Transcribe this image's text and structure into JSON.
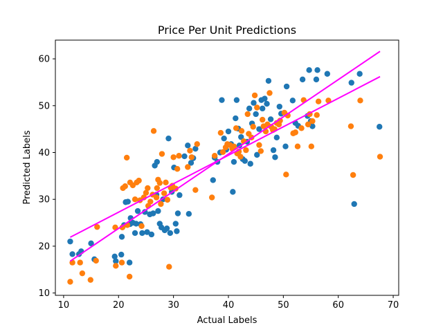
{
  "chart_data": {
    "type": "scatter",
    "title": "Price Per Unit Predictions",
    "xlabel": "Actual Labels",
    "ylabel": "Predicted Labels",
    "xlim": [
      8.5,
      71
    ],
    "ylim": [
      9.5,
      64
    ],
    "xticks": [
      10,
      20,
      30,
      40,
      50,
      60,
      70
    ],
    "yticks": [
      10,
      20,
      30,
      40,
      50,
      60
    ],
    "colors": {
      "series1": "#1f77b4",
      "series2": "#ff7f0e",
      "trend": "#ff00ff"
    },
    "series": [
      {
        "points": [
          [
            11.2,
            21.0
          ],
          [
            11.6,
            18.3
          ],
          [
            12.8,
            18.3
          ],
          [
            13.2,
            18.9
          ],
          [
            15.0,
            20.6
          ],
          [
            15.6,
            17.2
          ],
          [
            19.3,
            17.8
          ],
          [
            19.5,
            16.8
          ],
          [
            20.5,
            18.2
          ],
          [
            20.6,
            22.0
          ],
          [
            21.0,
            24.5
          ],
          [
            21.3,
            29.4
          ],
          [
            21.7,
            29.5
          ],
          [
            22.0,
            16.5
          ],
          [
            22.1,
            24.7
          ],
          [
            22.2,
            26.0
          ],
          [
            22.6,
            25.0
          ],
          [
            23.0,
            22.8
          ],
          [
            23.2,
            24.8
          ],
          [
            23.5,
            27.5
          ],
          [
            24.0,
            24.7
          ],
          [
            24.3,
            22.8
          ],
          [
            24.8,
            27.3
          ],
          [
            25.2,
            23.0
          ],
          [
            25.7,
            26.8
          ],
          [
            26.0,
            22.5
          ],
          [
            26.3,
            27.0
          ],
          [
            26.6,
            37.2
          ],
          [
            26.9,
            31.0
          ],
          [
            27.0,
            38.0
          ],
          [
            27.2,
            27.5
          ],
          [
            27.5,
            24.8
          ],
          [
            27.8,
            24.0
          ],
          [
            28.1,
            30.0
          ],
          [
            28.4,
            23.4
          ],
          [
            28.8,
            23.8
          ],
          [
            29.1,
            43.0
          ],
          [
            29.4,
            22.8
          ],
          [
            29.7,
            31.6
          ],
          [
            30.1,
            36.8
          ],
          [
            30.4,
            24.8
          ],
          [
            30.6,
            23.2
          ],
          [
            30.8,
            27.0
          ],
          [
            31.1,
            30.9
          ],
          [
            32.0,
            39.2
          ],
          [
            32.6,
            41.5
          ],
          [
            32.8,
            26.9
          ],
          [
            33.2,
            37.8
          ],
          [
            33.6,
            38.8
          ],
          [
            34.0,
            40.8
          ],
          [
            37.2,
            34.1
          ],
          [
            37.5,
            38.9
          ],
          [
            38.0,
            38.0
          ],
          [
            38.5,
            40.0
          ],
          [
            38.8,
            51.2
          ],
          [
            39.2,
            43.0
          ],
          [
            39.6,
            40.6
          ],
          [
            40.0,
            44.5
          ],
          [
            40.5,
            41.8
          ],
          [
            40.8,
            31.6
          ],
          [
            41.0,
            38.0
          ],
          [
            41.3,
            47.3
          ],
          [
            41.5,
            51.2
          ],
          [
            41.8,
            45.1
          ],
          [
            42.0,
            41.5
          ],
          [
            42.3,
            43.3
          ],
          [
            42.6,
            38.6
          ],
          [
            43.0,
            38.2
          ],
          [
            43.4,
            42.3
          ],
          [
            43.8,
            49.4
          ],
          [
            44.0,
            37.6
          ],
          [
            44.3,
            46.2
          ],
          [
            44.6,
            50.6
          ],
          [
            45.0,
            48.2
          ],
          [
            45.2,
            39.5
          ],
          [
            45.6,
            45.0
          ],
          [
            46.0,
            51.2
          ],
          [
            46.2,
            49.4
          ],
          [
            46.6,
            51.5
          ],
          [
            47.0,
            50.4
          ],
          [
            47.3,
            55.3
          ],
          [
            47.7,
            47.1
          ],
          [
            48.2,
            40.5
          ],
          [
            48.5,
            39.0
          ],
          [
            48.8,
            43.2
          ],
          [
            49.3,
            49.8
          ],
          [
            49.6,
            48.3
          ],
          [
            50.4,
            41.3
          ],
          [
            50.6,
            54.1
          ],
          [
            51.7,
            51.1
          ],
          [
            52.2,
            46.3
          ],
          [
            52.7,
            45.7
          ],
          [
            53.5,
            55.6
          ],
          [
            54.4,
            47.8
          ],
          [
            54.7,
            57.6
          ],
          [
            55.0,
            46.7
          ],
          [
            55.3,
            45.6
          ],
          [
            56.0,
            55.6
          ],
          [
            56.2,
            57.6
          ],
          [
            58.0,
            56.8
          ],
          [
            62.4,
            54.9
          ],
          [
            62.9,
            29.0
          ],
          [
            63.9,
            56.8
          ],
          [
            67.5,
            45.5
          ]
        ]
      },
      {
        "points": [
          [
            11.2,
            12.4
          ],
          [
            11.6,
            16.5
          ],
          [
            13.0,
            16.5
          ],
          [
            13.4,
            14.2
          ],
          [
            14.9,
            12.8
          ],
          [
            15.9,
            16.9
          ],
          [
            16.1,
            24.1
          ],
          [
            19.4,
            24.0
          ],
          [
            19.5,
            15.8
          ],
          [
            20.6,
            16.5
          ],
          [
            20.7,
            24.0
          ],
          [
            20.8,
            32.4
          ],
          [
            21.2,
            32.8
          ],
          [
            21.5,
            38.9
          ],
          [
            21.6,
            24.5
          ],
          [
            22.0,
            13.5
          ],
          [
            22.1,
            33.6
          ],
          [
            22.6,
            33.0
          ],
          [
            23.0,
            30.0
          ],
          [
            23.3,
            33.6
          ],
          [
            23.7,
            34.0
          ],
          [
            23.9,
            29.8
          ],
          [
            24.2,
            24.3
          ],
          [
            24.6,
            30.4
          ],
          [
            25.0,
            31.4
          ],
          [
            25.3,
            32.4
          ],
          [
            25.4,
            28.6
          ],
          [
            25.8,
            29.5
          ],
          [
            26.2,
            31.0
          ],
          [
            26.4,
            44.6
          ],
          [
            26.9,
            30.4
          ],
          [
            27.0,
            32.4
          ],
          [
            27.2,
            34.2
          ],
          [
            27.5,
            33.5
          ],
          [
            27.7,
            29.0
          ],
          [
            27.9,
            39.7
          ],
          [
            28.3,
            31.3
          ],
          [
            28.6,
            33.6
          ],
          [
            28.9,
            29.9
          ],
          [
            29.2,
            15.6
          ],
          [
            29.5,
            32.5
          ],
          [
            29.8,
            32.9
          ],
          [
            30.0,
            39.0
          ],
          [
            30.4,
            32.3
          ],
          [
            30.7,
            36.5
          ],
          [
            31.0,
            39.3
          ],
          [
            32.6,
            36.9
          ],
          [
            33.0,
            40.4
          ],
          [
            33.3,
            39.0
          ],
          [
            34.0,
            32.0
          ],
          [
            34.3,
            41.8
          ],
          [
            37.0,
            30.4
          ],
          [
            37.5,
            39.3
          ],
          [
            38.6,
            44.2
          ],
          [
            39.0,
            40.1
          ],
          [
            39.5,
            41.1
          ],
          [
            39.8,
            41.8
          ],
          [
            40.3,
            41.6
          ],
          [
            40.7,
            40.8
          ],
          [
            41.0,
            41.3
          ],
          [
            41.4,
            45.2
          ],
          [
            41.6,
            39.8
          ],
          [
            41.9,
            40.2
          ],
          [
            42.2,
            39.1
          ],
          [
            42.4,
            44.6
          ],
          [
            42.8,
            42.4
          ],
          [
            43.2,
            40.5
          ],
          [
            43.5,
            48.2
          ],
          [
            43.7,
            44.0
          ],
          [
            44.2,
            43.2
          ],
          [
            44.5,
            45.5
          ],
          [
            44.8,
            52.2
          ],
          [
            45.2,
            49.6
          ],
          [
            45.6,
            41.6
          ],
          [
            45.9,
            40.3
          ],
          [
            46.2,
            47.0
          ],
          [
            46.4,
            45.6
          ],
          [
            46.8,
            44.5
          ],
          [
            47.1,
            46.0
          ],
          [
            47.5,
            52.7
          ],
          [
            47.8,
            45.5
          ],
          [
            48.1,
            44.8
          ],
          [
            48.4,
            45.0
          ],
          [
            48.8,
            46.3
          ],
          [
            49.2,
            46.0
          ],
          [
            49.4,
            46.8
          ],
          [
            50.2,
            48.5
          ],
          [
            50.5,
            35.3
          ],
          [
            50.8,
            47.9
          ],
          [
            51.8,
            44.1
          ],
          [
            52.2,
            44.3
          ],
          [
            52.6,
            41.3
          ],
          [
            53.3,
            45.2
          ],
          [
            53.7,
            51.2
          ],
          [
            54.5,
            46.0
          ],
          [
            54.8,
            48.2
          ],
          [
            55.1,
            41.3
          ],
          [
            55.3,
            46.7
          ],
          [
            56.1,
            48.0
          ],
          [
            56.4,
            50.9
          ],
          [
            58.2,
            51.1
          ],
          [
            62.3,
            45.6
          ],
          [
            62.7,
            35.2
          ],
          [
            64.0,
            51.1
          ],
          [
            67.6,
            39.1
          ]
        ]
      }
    ],
    "trend_lines": [
      {
        "x": [
          11.2,
          67.6
        ],
        "y": [
          16.8,
          61.6
        ]
      },
      {
        "x": [
          11.2,
          67.6
        ],
        "y": [
          21.9,
          56.2
        ]
      }
    ]
  }
}
